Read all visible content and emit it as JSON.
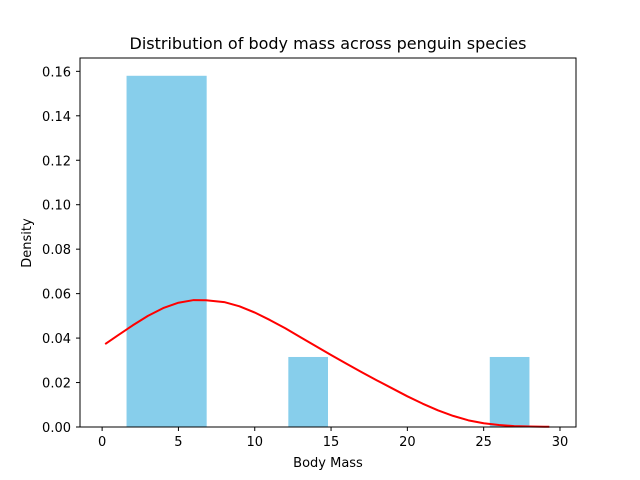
{
  "chart_data": {
    "type": "bar",
    "title": "Distribution of body mass across penguin species",
    "xlabel": "Body Mass",
    "ylabel": "Density",
    "xlim": [
      -1.45,
      31.05
    ],
    "ylim": [
      0,
      0.166
    ],
    "x_ticks": [
      0,
      5,
      10,
      15,
      20,
      25,
      30
    ],
    "y_ticks": [
      0.0,
      0.02,
      0.04,
      0.06,
      0.08,
      0.1,
      0.12,
      0.14,
      0.16
    ],
    "y_tick_labels": [
      "0.00",
      "0.02",
      "0.04",
      "0.06",
      "0.08",
      "0.10",
      "0.12",
      "0.14",
      "0.16"
    ],
    "grid": false,
    "series": [
      {
        "kind": "histogram",
        "bins": [
          {
            "x0": 1.6,
            "x1": 6.85,
            "density": 0.158
          },
          {
            "x0": 12.2,
            "x1": 14.8,
            "density": 0.0315
          },
          {
            "x0": 25.4,
            "x1": 28.0,
            "density": 0.0315
          }
        ],
        "color": "#87CEEB"
      },
      {
        "kind": "line",
        "x": [
          0.2,
          1.0,
          2.0,
          3.0,
          4.0,
          5.0,
          6.0,
          6.8,
          8.0,
          9.0,
          10.0,
          11.0,
          12.0,
          13.0,
          14.0,
          15.0,
          16.0,
          17.0,
          18.0,
          19.0,
          20.0,
          21.0,
          22.0,
          23.0,
          24.0,
          25.0,
          26.0,
          27.0,
          28.0,
          29.0,
          29.3
        ],
        "y": [
          0.0373,
          0.0411,
          0.0457,
          0.05,
          0.0535,
          0.0559,
          0.0571,
          0.057,
          0.0562,
          0.0543,
          0.0515,
          0.0481,
          0.0444,
          0.0404,
          0.0364,
          0.0324,
          0.0285,
          0.0247,
          0.021,
          0.0174,
          0.0138,
          0.0105,
          0.0075,
          0.005,
          0.003,
          0.0017,
          0.0009,
          0.0004,
          0.0002,
          0.0001,
          0.0001
        ],
        "color": "#ff0000"
      }
    ]
  }
}
